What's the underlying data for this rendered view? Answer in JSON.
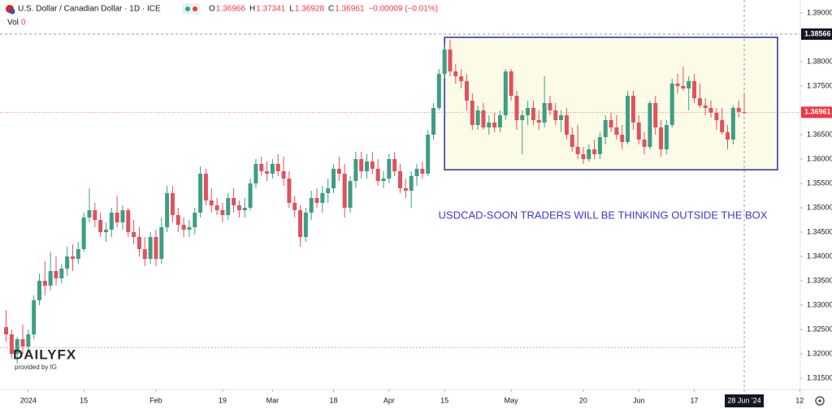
{
  "chart_data": {
    "type": "candlestick",
    "symbol": "U.S. Dollar / Canadian Dollar · 1D · ICE",
    "quote": [
      {
        "key": "O",
        "value": "1.36966"
      },
      {
        "key": "H",
        "value": "1.37341"
      },
      {
        "key": "L",
        "value": "1.36928"
      },
      {
        "key": "C",
        "value": "1.36961"
      }
    ],
    "change": "−0.00009 (−0.01%)",
    "volume_label": "Vol",
    "volume": 0,
    "annotation": "USDCAD-SOON TRADERS WILL BE THINKING OUTSIDE THE BOX",
    "annotation_color": "#3b3bd6",
    "box": {
      "x": [
        79,
        139
      ],
      "y": [
        1.3578,
        1.385
      ],
      "color": "#2a2aa8",
      "fill": "#fbfbe8"
    },
    "high_level": 1.38566,
    "last_price": 1.36961,
    "low_level": 1.3213,
    "crosshair_x": 133,
    "up_color": "#3e9e84",
    "down_color": "#e0525d",
    "logo": "DAILYFX",
    "logo_sub": "provided by IG",
    "ylim": [
      1.31267,
      1.39267
    ],
    "yticks": [
      {
        "value": 1.315,
        "label": "1.31500"
      },
      {
        "value": 1.32,
        "label": "1.32000"
      },
      {
        "value": 1.325,
        "label": "1.32500"
      },
      {
        "value": 1.33,
        "label": "1.33000"
      },
      {
        "value": 1.335,
        "label": "1.33500"
      },
      {
        "value": 1.34,
        "label": "1.34000"
      },
      {
        "value": 1.345,
        "label": "1.34500"
      },
      {
        "value": 1.35,
        "label": "1.35000"
      },
      {
        "value": 1.355,
        "label": "1.35500"
      },
      {
        "value": 1.36,
        "label": "1.36000"
      },
      {
        "value": 1.365,
        "label": "1.36500"
      },
      {
        "value": 1.37,
        "label": "1.37000"
      },
      {
        "value": 1.375,
        "label": "1.37500"
      },
      {
        "value": 1.38,
        "label": "1.38000"
      },
      {
        "value": 1.39,
        "label": "1.39000"
      }
    ],
    "xlim": [
      -1.1,
      143.1
    ],
    "xticks": [
      {
        "value": 4,
        "label": "2024"
      },
      {
        "value": 14,
        "label": "15"
      },
      {
        "value": 27,
        "label": "Feb"
      },
      {
        "value": 39,
        "label": "19"
      },
      {
        "value": 48,
        "label": "Mar"
      },
      {
        "value": 59,
        "label": "18"
      },
      {
        "value": 69,
        "label": "Apr"
      },
      {
        "value": 79,
        "label": "15"
      },
      {
        "value": 91,
        "label": "May"
      },
      {
        "value": 104,
        "label": "20"
      },
      {
        "value": 114,
        "label": "Jun"
      },
      {
        "value": 124,
        "label": "17"
      },
      {
        "value": 133,
        "label": "28 Jun '24"
      },
      {
        "value": 143,
        "label": "12"
      }
    ],
    "ohlc": [
      [
        1.3255,
        1.329,
        1.3225,
        1.324
      ],
      [
        1.324,
        1.325,
        1.319,
        1.32
      ],
      [
        1.32,
        1.3235,
        1.318,
        1.323
      ],
      [
        1.323,
        1.326,
        1.32,
        1.3215
      ],
      [
        1.3215,
        1.325,
        1.32,
        1.324
      ],
      [
        1.324,
        1.332,
        1.323,
        1.331
      ],
      [
        1.331,
        1.3365,
        1.33,
        1.335
      ],
      [
        1.335,
        1.339,
        1.332,
        1.334
      ],
      [
        1.334,
        1.341,
        1.333,
        1.337
      ],
      [
        1.337,
        1.34,
        1.334,
        1.3355
      ],
      [
        1.3355,
        1.3385,
        1.3345,
        1.3375
      ],
      [
        1.3375,
        1.342,
        1.336,
        1.34
      ],
      [
        1.34,
        1.3425,
        1.337,
        1.3395
      ],
      [
        1.3395,
        1.343,
        1.3385,
        1.3415
      ],
      [
        1.3415,
        1.349,
        1.341,
        1.348
      ],
      [
        1.348,
        1.354,
        1.347,
        1.3495
      ],
      [
        1.3495,
        1.351,
        1.346,
        1.3475
      ],
      [
        1.3475,
        1.349,
        1.344,
        1.345
      ],
      [
        1.345,
        1.347,
        1.343,
        1.3455
      ],
      [
        1.3455,
        1.35,
        1.344,
        1.349
      ],
      [
        1.349,
        1.3525,
        1.346,
        1.347
      ],
      [
        1.347,
        1.3505,
        1.3455,
        1.3495
      ],
      [
        1.3495,
        1.35,
        1.344,
        1.345
      ],
      [
        1.345,
        1.3475,
        1.3425,
        1.344
      ],
      [
        1.344,
        1.346,
        1.34,
        1.3415
      ],
      [
        1.3415,
        1.344,
        1.338,
        1.3395
      ],
      [
        1.3395,
        1.345,
        1.3385,
        1.344
      ],
      [
        1.344,
        1.3455,
        1.338,
        1.3395
      ],
      [
        1.3395,
        1.348,
        1.3385,
        1.346
      ],
      [
        1.346,
        1.3545,
        1.345,
        1.353
      ],
      [
        1.353,
        1.3545,
        1.347,
        1.3485
      ],
      [
        1.3485,
        1.35,
        1.345,
        1.3465
      ],
      [
        1.3465,
        1.348,
        1.344,
        1.3455
      ],
      [
        1.3455,
        1.3475,
        1.344,
        1.346
      ],
      [
        1.346,
        1.35,
        1.3445,
        1.349
      ],
      [
        1.349,
        1.3585,
        1.348,
        1.357
      ],
      [
        1.357,
        1.358,
        1.3505,
        1.3515
      ],
      [
        1.3515,
        1.354,
        1.349,
        1.3505
      ],
      [
        1.3505,
        1.352,
        1.3485,
        1.3495
      ],
      [
        1.3495,
        1.351,
        1.347,
        1.3485
      ],
      [
        1.3485,
        1.353,
        1.3475,
        1.352
      ],
      [
        1.352,
        1.354,
        1.349,
        1.3505
      ],
      [
        1.3505,
        1.3515,
        1.348,
        1.3495
      ],
      [
        1.3495,
        1.352,
        1.348,
        1.35
      ],
      [
        1.35,
        1.356,
        1.3495,
        1.355
      ],
      [
        1.355,
        1.36,
        1.354,
        1.359
      ],
      [
        1.359,
        1.3605,
        1.3565,
        1.3575
      ],
      [
        1.3575,
        1.3595,
        1.3555,
        1.357
      ],
      [
        1.357,
        1.36,
        1.356,
        1.359
      ],
      [
        1.359,
        1.361,
        1.3565,
        1.3575
      ],
      [
        1.3575,
        1.3605,
        1.3545,
        1.356
      ],
      [
        1.356,
        1.3575,
        1.35,
        1.351
      ],
      [
        1.351,
        1.3525,
        1.348,
        1.3495
      ],
      [
        1.3495,
        1.3505,
        1.342,
        1.344
      ],
      [
        1.344,
        1.35,
        1.343,
        1.349
      ],
      [
        1.349,
        1.3535,
        1.3475,
        1.352
      ],
      [
        1.352,
        1.354,
        1.35,
        1.351
      ],
      [
        1.351,
        1.3545,
        1.349,
        1.353
      ],
      [
        1.353,
        1.356,
        1.351,
        1.354
      ],
      [
        1.354,
        1.359,
        1.353,
        1.358
      ],
      [
        1.358,
        1.3605,
        1.3555,
        1.357
      ],
      [
        1.357,
        1.359,
        1.348,
        1.35
      ],
      [
        1.35,
        1.3565,
        1.349,
        1.3555
      ],
      [
        1.3555,
        1.3615,
        1.354,
        1.36
      ],
      [
        1.36,
        1.3615,
        1.356,
        1.3575
      ],
      [
        1.3575,
        1.361,
        1.356,
        1.3595
      ],
      [
        1.3595,
        1.3615,
        1.357,
        1.358
      ],
      [
        1.358,
        1.36,
        1.3545,
        1.3555
      ],
      [
        1.3555,
        1.3575,
        1.354,
        1.356
      ],
      [
        1.356,
        1.361,
        1.355,
        1.36
      ],
      [
        1.36,
        1.3615,
        1.3565,
        1.3575
      ],
      [
        1.3575,
        1.359,
        1.353,
        1.354
      ],
      [
        1.354,
        1.356,
        1.352,
        1.3535
      ],
      [
        1.3535,
        1.3575,
        1.35,
        1.3565
      ],
      [
        1.3565,
        1.359,
        1.3545,
        1.358
      ],
      [
        1.358,
        1.3595,
        1.356,
        1.357
      ],
      [
        1.357,
        1.366,
        1.3565,
        1.365
      ],
      [
        1.365,
        1.3715,
        1.364,
        1.3705
      ],
      [
        1.3705,
        1.3785,
        1.37,
        1.3775
      ],
      [
        1.3775,
        1.3835,
        1.3765,
        1.3825
      ],
      [
        1.3825,
        1.3846,
        1.377,
        1.378
      ],
      [
        1.378,
        1.3795,
        1.3755,
        1.377
      ],
      [
        1.377,
        1.3785,
        1.3745,
        1.376
      ],
      [
        1.376,
        1.3775,
        1.37,
        1.372
      ],
      [
        1.372,
        1.3735,
        1.366,
        1.367
      ],
      [
        1.367,
        1.371,
        1.366,
        1.37
      ],
      [
        1.37,
        1.3715,
        1.366,
        1.3665
      ],
      [
        1.3665,
        1.369,
        1.365,
        1.3675
      ],
      [
        1.3675,
        1.3695,
        1.3655,
        1.3665
      ],
      [
        1.3665,
        1.37,
        1.3655,
        1.369
      ],
      [
        1.369,
        1.3785,
        1.368,
        1.378
      ],
      [
        1.378,
        1.3785,
        1.372,
        1.373
      ],
      [
        1.373,
        1.374,
        1.366,
        1.368
      ],
      [
        1.368,
        1.37,
        1.361,
        1.369
      ],
      [
        1.369,
        1.372,
        1.367,
        1.3705
      ],
      [
        1.3705,
        1.372,
        1.367,
        1.368
      ],
      [
        1.368,
        1.37,
        1.366,
        1.3675
      ],
      [
        1.3675,
        1.377,
        1.3665,
        1.3715
      ],
      [
        1.3715,
        1.373,
        1.369,
        1.37
      ],
      [
        1.37,
        1.3715,
        1.367,
        1.368
      ],
      [
        1.368,
        1.37,
        1.3655,
        1.369
      ],
      [
        1.369,
        1.3705,
        1.364,
        1.365
      ],
      [
        1.365,
        1.3665,
        1.3615,
        1.3625
      ],
      [
        1.3625,
        1.367,
        1.36,
        1.361
      ],
      [
        1.361,
        1.3625,
        1.359,
        1.36
      ],
      [
        1.36,
        1.363,
        1.3595,
        1.362
      ],
      [
        1.362,
        1.364,
        1.36,
        1.361
      ],
      [
        1.361,
        1.3655,
        1.36,
        1.3645
      ],
      [
        1.3645,
        1.369,
        1.363,
        1.368
      ],
      [
        1.368,
        1.3695,
        1.3655,
        1.3665
      ],
      [
        1.3665,
        1.369,
        1.364,
        1.365
      ],
      [
        1.365,
        1.367,
        1.362,
        1.3635
      ],
      [
        1.3635,
        1.374,
        1.363,
        1.373
      ],
      [
        1.373,
        1.374,
        1.366,
        1.3675
      ],
      [
        1.3675,
        1.369,
        1.363,
        1.364
      ],
      [
        1.364,
        1.3655,
        1.361,
        1.3625
      ],
      [
        1.3625,
        1.372,
        1.362,
        1.3715
      ],
      [
        1.3715,
        1.373,
        1.365,
        1.3665
      ],
      [
        1.3665,
        1.368,
        1.3605,
        1.362
      ],
      [
        1.362,
        1.368,
        1.361,
        1.367
      ],
      [
        1.367,
        1.3765,
        1.3665,
        1.3755
      ],
      [
        1.3755,
        1.3775,
        1.3735,
        1.375
      ],
      [
        1.375,
        1.379,
        1.374,
        1.3745
      ],
      [
        1.3745,
        1.377,
        1.37,
        1.376
      ],
      [
        1.376,
        1.3775,
        1.3715,
        1.3725
      ],
      [
        1.3725,
        1.3755,
        1.3705,
        1.371
      ],
      [
        1.371,
        1.3725,
        1.369,
        1.3705
      ],
      [
        1.3705,
        1.372,
        1.3685,
        1.3695
      ],
      [
        1.3695,
        1.3705,
        1.366,
        1.368
      ],
      [
        1.368,
        1.3705,
        1.365,
        1.3655
      ],
      [
        1.3655,
        1.367,
        1.362,
        1.364
      ],
      [
        1.364,
        1.371,
        1.363,
        1.3705
      ],
      [
        1.3705,
        1.372,
        1.3685,
        1.3697
      ],
      [
        1.36966,
        1.37341,
        1.36928,
        1.36961
      ]
    ]
  }
}
